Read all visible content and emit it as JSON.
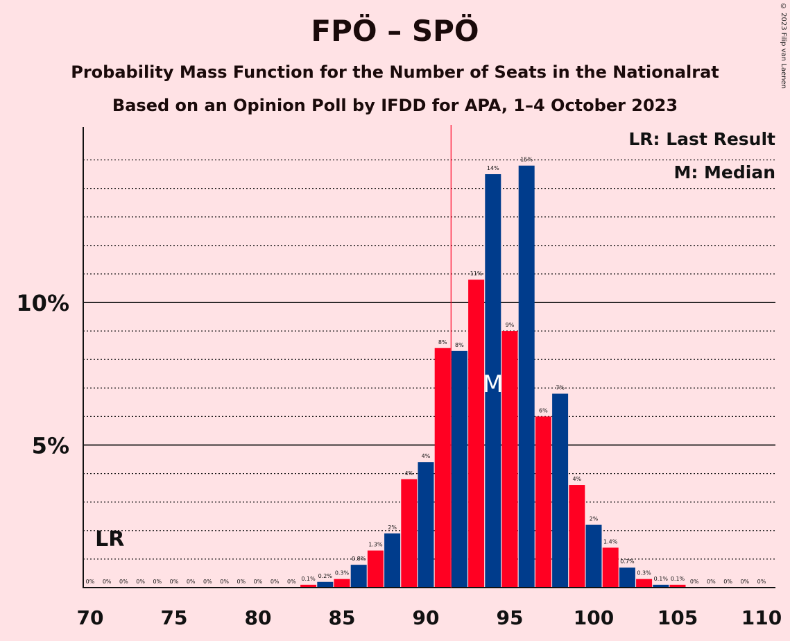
{
  "chart_data": {
    "type": "bar",
    "title": "FPÖ – SPÖ",
    "subtitle": "Probability Mass Function for the Number of Seats in the Nationalrat",
    "subtitle2": "Based on an Opinion Poll by IFDD for APA, 1–4 October 2023",
    "copyright": "© 2023 Filip van Laenen",
    "x": [
      70,
      71,
      72,
      73,
      74,
      75,
      76,
      77,
      78,
      79,
      80,
      81,
      82,
      83,
      84,
      85,
      86,
      87,
      88,
      89,
      90,
      91,
      92,
      93,
      94,
      95,
      96,
      97,
      98,
      99,
      100,
      101,
      102,
      103,
      104,
      105,
      106,
      107,
      108,
      109,
      110
    ],
    "values": [
      0,
      0,
      0,
      0,
      0,
      0,
      0,
      0,
      0,
      0,
      0,
      0,
      0,
      0.1,
      0.2,
      0.3,
      0.8,
      1.3,
      1.9,
      3.8,
      4.4,
      8.4,
      8.3,
      10.8,
      14.5,
      9.0,
      14.8,
      6.0,
      6.8,
      3.6,
      2.2,
      1.4,
      0.7,
      0.3,
      0.1,
      0.1,
      0,
      0,
      0,
      0,
      0
    ],
    "labels": [
      "0%",
      "0%",
      "0%",
      "0%",
      "0%",
      "0%",
      "0%",
      "0%",
      "0%",
      "0%",
      "0%",
      "0%",
      "0%",
      "0.1%",
      "0.2%",
      "0.3%",
      "0.8%",
      "1.3%",
      "2%",
      "4%",
      "4%",
      "8%",
      "8%",
      "11%",
      "14%",
      "9%",
      "15%",
      "6%",
      "7%",
      "4%",
      "2%",
      "1.4%",
      "0.7%",
      "0.3%",
      "0.1%",
      "0.1%",
      "0%",
      "0%",
      "0%",
      "0%",
      "0%"
    ],
    "xticks": [
      70,
      75,
      80,
      85,
      90,
      95,
      100,
      105,
      110
    ],
    "yticks": [
      {
        "value": 5,
        "label": "5%"
      },
      {
        "value": 10,
        "label": "10%"
      }
    ],
    "ylim": [
      0,
      16
    ],
    "majority_line": 91.5,
    "last_result": {
      "seat": 71,
      "label": "LR"
    },
    "median": {
      "seat": 94,
      "label": "M"
    },
    "legend": [
      "LR: Last Result",
      "M: Median"
    ],
    "colors": {
      "red": "#FF0022",
      "blue": "#003C8C",
      "line": "#FF0022",
      "background": "#FFE2E5"
    }
  }
}
